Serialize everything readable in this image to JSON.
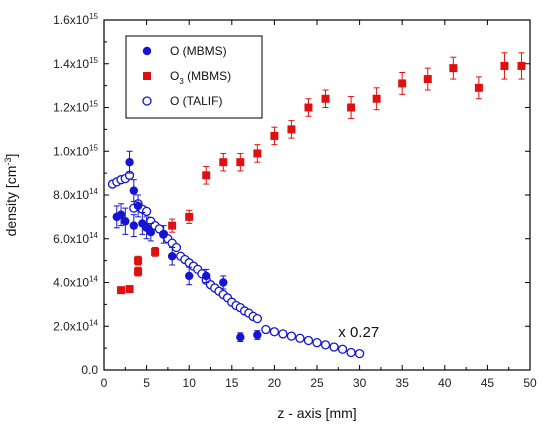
{
  "chart_data": {
    "type": "scatter",
    "xlabel": "z - axis [mm]",
    "ylabel_text": "density [cm",
    "ylabel_sup": "-3",
    "ylabel_end": "]",
    "xlim": [
      0,
      50
    ],
    "ylim": [
      0,
      1600000000000000.0
    ],
    "x_ticks": [
      "0",
      "5",
      "10",
      "15",
      "20",
      "25",
      "30",
      "35",
      "40",
      "45",
      "50"
    ],
    "y_ticks": [
      {
        "value": 0,
        "mant": "0.0",
        "exp": ""
      },
      {
        "value": 200000000000000.0,
        "mant": "2.0x10",
        "exp": "14"
      },
      {
        "value": 400000000000000.0,
        "mant": "4.0x10",
        "exp": "14"
      },
      {
        "value": 600000000000000.0,
        "mant": "6.0x10",
        "exp": "14"
      },
      {
        "value": 800000000000000.0,
        "mant": "8.0x10",
        "exp": "14"
      },
      {
        "value": 1000000000000000.0,
        "mant": "1.0x10",
        "exp": "15"
      },
      {
        "value": 1200000000000000.0,
        "mant": "1.2x10",
        "exp": "15"
      },
      {
        "value": 1400000000000000.0,
        "mant": "1.4x10",
        "exp": "15"
      },
      {
        "value": 1600000000000000.0,
        "mant": "1.6x10",
        "exp": "15"
      }
    ],
    "annotation": {
      "text": "x 0.27",
      "x": 27.5,
      "y": 150000000000000.0
    },
    "legend": {
      "position": "top-left"
    },
    "series": [
      {
        "name_main": "O",
        "name_sub": "",
        "name_suffix": " (MBMS)",
        "marker": "filled-circle",
        "color": "#1414d2",
        "points": [
          {
            "x": 1.5,
            "y": 700000000000000.0,
            "err": 50000000000000.0
          },
          {
            "x": 2.0,
            "y": 710000000000000.0,
            "err": 50000000000000.0
          },
          {
            "x": 2.5,
            "y": 680000000000000.0,
            "err": 60000000000000.0
          },
          {
            "x": 3.0,
            "y": 950000000000000.0,
            "err": 50000000000000.0
          },
          {
            "x": 3.5,
            "y": 820000000000000.0,
            "err": 50000000000000.0
          },
          {
            "x": 3.5,
            "y": 660000000000000.0,
            "err": 50000000000000.0
          },
          {
            "x": 4.0,
            "y": 750000000000000.0,
            "err": 50000000000000.0
          },
          {
            "x": 4.5,
            "y": 670000000000000.0,
            "err": 50000000000000.0
          },
          {
            "x": 5.0,
            "y": 650000000000000.0,
            "err": 50000000000000.0
          },
          {
            "x": 5.5,
            "y": 630000000000000.0,
            "err": 40000000000000.0
          },
          {
            "x": 7.0,
            "y": 620000000000000.0,
            "err": 40000000000000.0
          },
          {
            "x": 8.0,
            "y": 520000000000000.0,
            "err": 40000000000000.0
          },
          {
            "x": 10.0,
            "y": 430000000000000.0,
            "err": 40000000000000.0
          },
          {
            "x": 12.0,
            "y": 430000000000000.0,
            "err": 30000000000000.0
          },
          {
            "x": 14.0,
            "y": 400000000000000.0,
            "err": 30000000000000.0
          },
          {
            "x": 16.0,
            "y": 150000000000000.0,
            "err": 20000000000000.0
          },
          {
            "x": 18.0,
            "y": 160000000000000.0,
            "err": 20000000000000.0
          }
        ]
      },
      {
        "name_main": "O",
        "name_sub": "3",
        "name_suffix": " (MBMS)",
        "marker": "filled-square",
        "color": "#e01010",
        "points": [
          {
            "x": 2.0,
            "y": 365000000000000.0,
            "err": 10000000000000.0
          },
          {
            "x": 3.0,
            "y": 370000000000000.0,
            "err": 10000000000000.0
          },
          {
            "x": 4.0,
            "y": 450000000000000.0,
            "err": 20000000000000.0
          },
          {
            "x": 4.0,
            "y": 500000000000000.0,
            "err": 20000000000000.0
          },
          {
            "x": 6.0,
            "y": 540000000000000.0,
            "err": 20000000000000.0
          },
          {
            "x": 8.0,
            "y": 660000000000000.0,
            "err": 30000000000000.0
          },
          {
            "x": 10.0,
            "y": 700000000000000.0,
            "err": 30000000000000.0
          },
          {
            "x": 12.0,
            "y": 890000000000000.0,
            "err": 40000000000000.0
          },
          {
            "x": 14.0,
            "y": 950000000000000.0,
            "err": 40000000000000.0
          },
          {
            "x": 16.0,
            "y": 950000000000000.0,
            "err": 40000000000000.0
          },
          {
            "x": 18.0,
            "y": 990000000000000.0,
            "err": 40000000000000.0
          },
          {
            "x": 20.0,
            "y": 1070000000000000.0,
            "err": 40000000000000.0
          },
          {
            "x": 22.0,
            "y": 1100000000000000.0,
            "err": 40000000000000.0
          },
          {
            "x": 24.0,
            "y": 1200000000000000.0,
            "err": 40000000000000.0
          },
          {
            "x": 26.0,
            "y": 1240000000000000.0,
            "err": 40000000000000.0
          },
          {
            "x": 29.0,
            "y": 1200000000000000.0,
            "err": 50000000000000.0
          },
          {
            "x": 32.0,
            "y": 1240000000000000.0,
            "err": 50000000000000.0
          },
          {
            "x": 35.0,
            "y": 1310000000000000.0,
            "err": 50000000000000.0
          },
          {
            "x": 38.0,
            "y": 1330000000000000.0,
            "err": 50000000000000.0
          },
          {
            "x": 41.0,
            "y": 1380000000000000.0,
            "err": 50000000000000.0
          },
          {
            "x": 44.0,
            "y": 1290000000000000.0,
            "err": 50000000000000.0
          },
          {
            "x": 47.0,
            "y": 1390000000000000.0,
            "err": 60000000000000.0
          },
          {
            "x": 49.0,
            "y": 1390000000000000.0,
            "err": 60000000000000.0
          }
        ]
      },
      {
        "name_main": "O",
        "name_sub": "",
        "name_suffix": " (TALIF)",
        "marker": "open-circle",
        "color": "#1414d2",
        "points": [
          {
            "x": 1.0,
            "y": 850000000000000.0
          },
          {
            "x": 1.5,
            "y": 860000000000000.0
          },
          {
            "x": 2.0,
            "y": 870000000000000.0
          },
          {
            "x": 2.5,
            "y": 875000000000000.0
          },
          {
            "x": 3.0,
            "y": 890000000000000.0
          },
          {
            "x": 3.5,
            "y": 740000000000000.0
          },
          {
            "x": 4.0,
            "y": 760000000000000.0
          },
          {
            "x": 4.5,
            "y": 735000000000000.0
          },
          {
            "x": 5.0,
            "y": 725000000000000.0
          },
          {
            "x": 5.5,
            "y": 680000000000000.0
          },
          {
            "x": 6.0,
            "y": 660000000000000.0
          },
          {
            "x": 6.5,
            "y": 645000000000000.0
          },
          {
            "x": 7.0,
            "y": 620000000000000.0
          },
          {
            "x": 7.5,
            "y": 600000000000000.0
          },
          {
            "x": 8.0,
            "y": 580000000000000.0
          },
          {
            "x": 8.5,
            "y": 560000000000000.0
          },
          {
            "x": 9.0,
            "y": 520000000000000.0
          },
          {
            "x": 9.5,
            "y": 505000000000000.0
          },
          {
            "x": 10.0,
            "y": 490000000000000.0
          },
          {
            "x": 10.5,
            "y": 475000000000000.0
          },
          {
            "x": 11.0,
            "y": 460000000000000.0
          },
          {
            "x": 11.5,
            "y": 440000000000000.0
          },
          {
            "x": 12.0,
            "y": 410000000000000.0
          },
          {
            "x": 12.5,
            "y": 390000000000000.0
          },
          {
            "x": 13.0,
            "y": 375000000000000.0
          },
          {
            "x": 13.5,
            "y": 360000000000000.0
          },
          {
            "x": 14.0,
            "y": 345000000000000.0
          },
          {
            "x": 14.5,
            "y": 330000000000000.0
          },
          {
            "x": 15.0,
            "y": 310000000000000.0
          },
          {
            "x": 15.5,
            "y": 295000000000000.0
          },
          {
            "x": 16.0,
            "y": 285000000000000.0
          },
          {
            "x": 16.5,
            "y": 270000000000000.0
          },
          {
            "x": 17.0,
            "y": 260000000000000.0
          },
          {
            "x": 17.5,
            "y": 245000000000000.0
          },
          {
            "x": 18.0,
            "y": 235000000000000.0
          },
          {
            "x": 19.0,
            "y": 185000000000000.0
          },
          {
            "x": 20.0,
            "y": 175000000000000.0
          },
          {
            "x": 21.0,
            "y": 165000000000000.0
          },
          {
            "x": 22.0,
            "y": 155000000000000.0
          },
          {
            "x": 23.0,
            "y": 145000000000000.0
          },
          {
            "x": 24.0,
            "y": 135000000000000.0
          },
          {
            "x": 25.0,
            "y": 125000000000000.0
          },
          {
            "x": 26.0,
            "y": 115000000000000.0
          },
          {
            "x": 27.0,
            "y": 105000000000000.0
          },
          {
            "x": 28.0,
            "y": 95000000000000.0
          },
          {
            "x": 29.0,
            "y": 80000000000000.0
          },
          {
            "x": 30.0,
            "y": 75000000000000.0
          }
        ]
      }
    ]
  }
}
